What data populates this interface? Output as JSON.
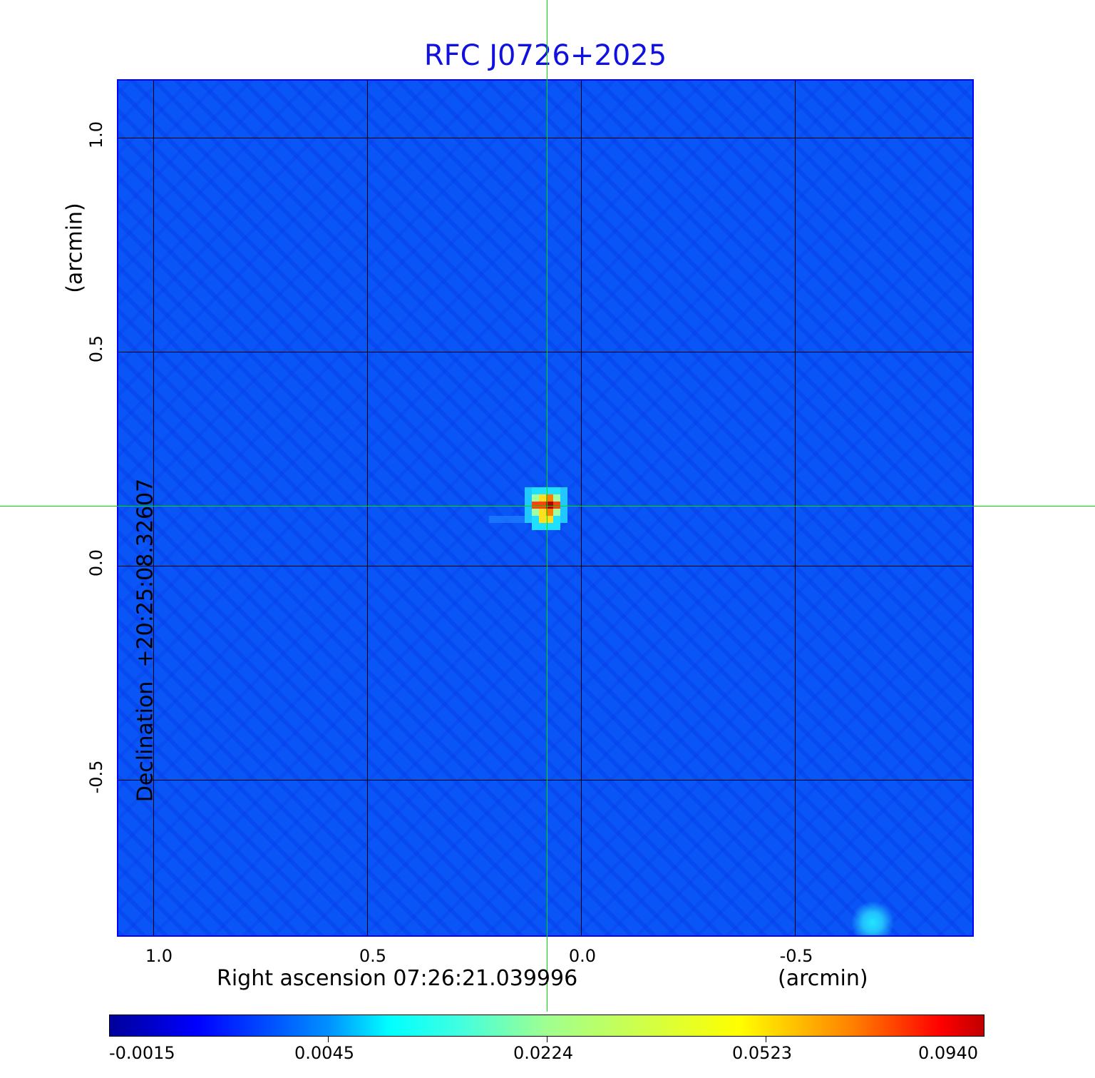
{
  "chart_data": {
    "type": "heatmap",
    "title": "RFC J0726+2025",
    "xlabel": "Right ascension  07:26:21.039996",
    "xunit": "(arcmin)",
    "ylabel": "Declination  +20:25:08.32607",
    "yunit": "(arcmin)",
    "x_ticks": [
      "1.0",
      "0.5",
      "0.0",
      "-0.5"
    ],
    "y_ticks": [
      "1.0",
      "0.5",
      "0.0",
      "-0.5"
    ],
    "xlim": [
      1.085,
      -0.92
    ],
    "ylim": [
      -0.865,
      1.135
    ],
    "grid": true,
    "crosshair": {
      "x": 0.08,
      "y": 0.14,
      "color": "#00ff00"
    },
    "sources": [
      {
        "x": 0.08,
        "y": 0.14,
        "peak": 0.094
      },
      {
        "x": -0.68,
        "y": -0.83,
        "peak": 0.01
      }
    ],
    "colormap": "jet",
    "colorbar": {
      "ticks": [
        "-0.0015",
        "0.0045",
        "0.0224",
        "0.0523",
        "0.0940"
      ],
      "range": [
        -0.0015,
        0.094
      ]
    }
  }
}
